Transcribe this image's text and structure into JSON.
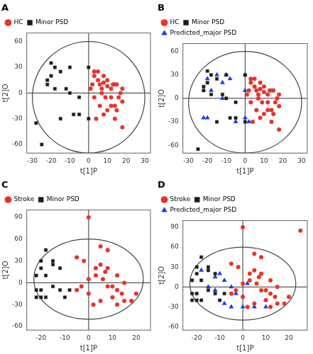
{
  "chart_data": [
    {
      "type": "scatter",
      "title": "A",
      "x_label": "t[1]P",
      "y_label": "t[2]O",
      "xlim": [
        -33,
        33
      ],
      "ylim": [
        -70,
        70
      ],
      "xticks": [
        -30,
        -20,
        -10,
        0,
        10,
        20,
        30
      ],
      "yticks": [
        -60,
        -30,
        0,
        30,
        60
      ],
      "grid": false,
      "legend": "top",
      "series": [
        {
          "name": "HC",
          "color": "#e8342a",
          "marker": "circle",
          "values": [
            [
              2,
              10
            ],
            [
              5,
              15
            ],
            [
              8,
              12
            ],
            [
              10,
              8
            ],
            [
              12,
              5
            ],
            [
              15,
              10
            ],
            [
              7,
              0
            ],
            [
              9,
              -5
            ],
            [
              12,
              -15
            ],
            [
              15,
              -20
            ],
            [
              18,
              -10
            ],
            [
              3,
              -5
            ],
            [
              6,
              -15
            ],
            [
              10,
              -20
            ],
            [
              14,
              -30
            ],
            [
              18,
              -40
            ],
            [
              5,
              25
            ],
            [
              8,
              20
            ],
            [
              1,
              5
            ],
            [
              3,
              20
            ],
            [
              7,
              5
            ],
            [
              12,
              -5
            ],
            [
              16,
              -5
            ],
            [
              14,
              -15
            ],
            [
              8,
              -25
            ],
            [
              4,
              -30
            ],
            [
              17,
              0
            ],
            [
              13,
              10
            ],
            [
              6,
              10
            ],
            [
              10,
              15
            ],
            [
              14,
              10
            ],
            [
              18,
              5
            ],
            [
              3,
              25
            ]
          ]
        },
        {
          "name": "Minor PSD",
          "color": "#1a1a1a",
          "marker": "square",
          "values": [
            [
              -25,
              -60
            ],
            [
              -28,
              -35
            ],
            [
              -22,
              15
            ],
            [
              -18,
              30
            ],
            [
              -20,
              20
            ],
            [
              -15,
              25
            ],
            [
              -22,
              10
            ],
            [
              -12,
              5
            ],
            [
              -18,
              5
            ],
            [
              -10,
              0
            ],
            [
              -5,
              -25
            ],
            [
              -8,
              -25
            ],
            [
              0,
              -30
            ],
            [
              -15,
              -30
            ],
            [
              -5,
              -5
            ],
            [
              -10,
              30
            ],
            [
              0,
              30
            ],
            [
              -20,
              35
            ]
          ]
        }
      ],
      "ellipse": {
        "cx": 0,
        "cy": -5,
        "rx": 30,
        "ry": 65
      },
      "hlines": [
        0
      ],
      "vlines": [
        0
      ]
    },
    {
      "type": "scatter",
      "title": "B",
      "x_label": "t[1]P",
      "y_label": "t[2]O",
      "xlim": [
        -33,
        33
      ],
      "ylim": [
        -70,
        70
      ],
      "xticks": [
        -30,
        -20,
        -10,
        0,
        10,
        20,
        30
      ],
      "yticks": [
        -60,
        -30,
        0,
        30,
        60
      ],
      "grid": false,
      "legend": "top",
      "series": [
        {
          "name": "HC",
          "color": "#e8342a",
          "marker": "circle",
          "values": [
            [
              2,
              10
            ],
            [
              5,
              15
            ],
            [
              8,
              12
            ],
            [
              10,
              8
            ],
            [
              12,
              5
            ],
            [
              15,
              10
            ],
            [
              7,
              0
            ],
            [
              9,
              -5
            ],
            [
              12,
              -15
            ],
            [
              15,
              -20
            ],
            [
              18,
              -10
            ],
            [
              3,
              -5
            ],
            [
              6,
              -15
            ],
            [
              10,
              -20
            ],
            [
              14,
              -30
            ],
            [
              18,
              -40
            ],
            [
              5,
              25
            ],
            [
              8,
              20
            ],
            [
              1,
              5
            ],
            [
              3,
              20
            ],
            [
              7,
              5
            ],
            [
              12,
              -5
            ],
            [
              16,
              -5
            ],
            [
              14,
              -15
            ],
            [
              8,
              -25
            ],
            [
              4,
              -30
            ],
            [
              17,
              0
            ],
            [
              13,
              10
            ],
            [
              6,
              10
            ],
            [
              10,
              15
            ],
            [
              14,
              10
            ],
            [
              18,
              5
            ],
            [
              3,
              25
            ]
          ]
        },
        {
          "name": "Minor PSD",
          "color": "#1a1a1a",
          "marker": "square",
          "values": [
            [
              -25,
              -65
            ],
            [
              -22,
              15
            ],
            [
              -18,
              30
            ],
            [
              -20,
              20
            ],
            [
              -15,
              25
            ],
            [
              -22,
              10
            ],
            [
              -12,
              5
            ],
            [
              -18,
              5
            ],
            [
              -10,
              0
            ],
            [
              -5,
              -25
            ],
            [
              -8,
              -25
            ],
            [
              0,
              -30
            ],
            [
              -15,
              -30
            ],
            [
              -5,
              -5
            ],
            [
              -10,
              30
            ],
            [
              0,
              30
            ],
            [
              -20,
              35
            ]
          ]
        },
        {
          "name": "Predicted_major PSD",
          "color": "#1a3de4",
          "marker": "triangle",
          "values": [
            [
              -20,
              25
            ],
            [
              -15,
              30
            ],
            [
              -10,
              30
            ],
            [
              -18,
              10
            ],
            [
              -12,
              0
            ],
            [
              -20,
              -25
            ],
            [
              -22,
              -25
            ],
            [
              0,
              30
            ],
            [
              0,
              10
            ],
            [
              0,
              -25
            ],
            [
              -5,
              -30
            ],
            [
              2,
              -30
            ],
            [
              -8,
              25
            ],
            [
              -12,
              20
            ]
          ]
        }
      ],
      "ellipse": {
        "cx": 0,
        "cy": -5,
        "rx": 30,
        "ry": 65
      },
      "hlines": [
        0
      ],
      "vlines": [
        0
      ]
    },
    {
      "type": "scatter",
      "title": "C",
      "x_label": "t[1]P",
      "y_label": "t[2]O",
      "xlim": [
        -26,
        26
      ],
      "ylim": [
        -65,
        100
      ],
      "xticks": [
        -20,
        -10,
        0,
        10,
        20
      ],
      "yticks": [
        -60,
        -30,
        0,
        30,
        60,
        90
      ],
      "grid": false,
      "legend": "top",
      "series": [
        {
          "name": "Stroke",
          "color": "#e8342a",
          "marker": "circle",
          "values": [
            [
              0,
              90
            ],
            [
              5,
              50
            ],
            [
              8,
              45
            ],
            [
              -5,
              35
            ],
            [
              -2,
              30
            ],
            [
              5,
              25
            ],
            [
              8,
              20
            ],
            [
              3,
              10
            ],
            [
              6,
              5
            ],
            [
              8,
              -5
            ],
            [
              10,
              -5
            ],
            [
              12,
              -10
            ],
            [
              14,
              -15
            ],
            [
              10,
              -20
            ],
            [
              15,
              -25
            ],
            [
              12,
              -30
            ],
            [
              5,
              -25
            ],
            [
              0,
              -15
            ],
            [
              -5,
              -10
            ],
            [
              2,
              -30
            ],
            [
              18,
              -25
            ],
            [
              20,
              -15
            ],
            [
              0,
              5
            ],
            [
              3,
              20
            ],
            [
              7,
              15
            ],
            [
              -3,
              -5
            ],
            [
              15,
              0
            ],
            [
              12,
              10
            ]
          ]
        },
        {
          "name": "Minor PSD",
          "color": "#1a1a1a",
          "marker": "square",
          "values": [
            [
              -18,
              45
            ],
            [
              -15,
              30
            ],
            [
              -20,
              30
            ],
            [
              -15,
              25
            ],
            [
              -20,
              20
            ],
            [
              -12,
              20
            ],
            [
              -18,
              10
            ],
            [
              -22,
              10
            ],
            [
              -20,
              -10
            ],
            [
              -22,
              -10
            ],
            [
              -8,
              -10
            ],
            [
              -12,
              -10
            ],
            [
              -15,
              -5
            ],
            [
              -20,
              -20
            ],
            [
              -10,
              -20
            ],
            [
              -18,
              -20
            ],
            [
              -22,
              -20
            ]
          ]
        }
      ],
      "ellipse": {
        "cx": 0,
        "cy": 5,
        "rx": 23,
        "ry": 55
      },
      "hlines": [
        0
      ],
      "vlines": [
        0
      ]
    },
    {
      "type": "scatter",
      "title": "D",
      "x_label": "t[1]P",
      "y_label": "t[2]O",
      "xlim": [
        -26,
        28
      ],
      "ylim": [
        -65,
        100
      ],
      "xticks": [
        -20,
        -10,
        0,
        10,
        20
      ],
      "yticks": [
        -60,
        -30,
        0,
        30,
        60,
        90
      ],
      "grid": false,
      "legend": "top",
      "series": [
        {
          "name": "Stroke",
          "color": "#e8342a",
          "marker": "circle",
          "values": [
            [
              0,
              90
            ],
            [
              5,
              50
            ],
            [
              8,
              45
            ],
            [
              -5,
              35
            ],
            [
              -2,
              30
            ],
            [
              5,
              25
            ],
            [
              8,
              20
            ],
            [
              3,
              10
            ],
            [
              6,
              5
            ],
            [
              8,
              -5
            ],
            [
              10,
              -5
            ],
            [
              12,
              -10
            ],
            [
              14,
              -15
            ],
            [
              10,
              -20
            ],
            [
              15,
              -25
            ],
            [
              12,
              -30
            ],
            [
              5,
              -25
            ],
            [
              0,
              -15
            ],
            [
              -5,
              -10
            ],
            [
              2,
              -30
            ],
            [
              18,
              -25
            ],
            [
              20,
              -15
            ],
            [
              0,
              5
            ],
            [
              3,
              20
            ],
            [
              7,
              15
            ],
            [
              -3,
              -5
            ],
            [
              15,
              0
            ],
            [
              12,
              10
            ],
            [
              25,
              85
            ]
          ]
        },
        {
          "name": "Minor PSD",
          "color": "#1a1a1a",
          "marker": "square",
          "values": [
            [
              -18,
              45
            ],
            [
              -15,
              30
            ],
            [
              -20,
              30
            ],
            [
              -15,
              25
            ],
            [
              -20,
              20
            ],
            [
              -12,
              20
            ],
            [
              -18,
              10
            ],
            [
              -22,
              10
            ],
            [
              -20,
              -10
            ],
            [
              -22,
              -10
            ],
            [
              -8,
              -10
            ],
            [
              -12,
              -10
            ],
            [
              -15,
              -5
            ],
            [
              -20,
              -20
            ],
            [
              -10,
              -20
            ],
            [
              -18,
              -20
            ],
            [
              -22,
              -20
            ]
          ]
        },
        {
          "name": "Predicted_major PSD",
          "color": "#1a3de4",
          "marker": "triangle",
          "values": [
            [
              -18,
              25
            ],
            [
              -12,
              15
            ],
            [
              -10,
              20
            ],
            [
              -8,
              10
            ],
            [
              -15,
              0
            ],
            [
              -5,
              0
            ],
            [
              -12,
              -5
            ],
            [
              -8,
              -25
            ],
            [
              -5,
              -30
            ],
            [
              0,
              -30
            ],
            [
              5,
              -30
            ],
            [
              10,
              -30
            ],
            [
              -3,
              -10
            ],
            [
              2,
              5
            ]
          ]
        }
      ],
      "ellipse": {
        "cx": 0,
        "cy": 5,
        "rx": 23,
        "ry": 55
      },
      "hlines": [
        0
      ],
      "vlines": [
        0
      ]
    }
  ]
}
